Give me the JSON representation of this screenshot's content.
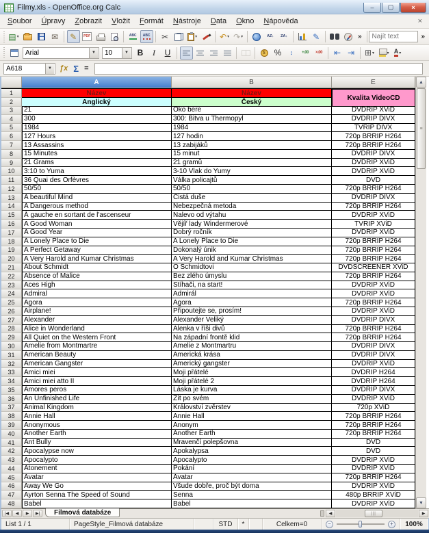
{
  "window": {
    "title": "Filmy.xls - OpenOffice.org Calc"
  },
  "titlebar": {
    "buttons": [
      {
        "name": "minimize-button",
        "glyph": "–"
      },
      {
        "name": "maximize-button",
        "glyph": "▢"
      },
      {
        "name": "close-button",
        "glyph": "×"
      }
    ]
  },
  "menu": {
    "items": [
      "Soubor",
      "Úpravy",
      "Zobrazit",
      "Vložit",
      "Formát",
      "Nástroje",
      "Data",
      "Okno",
      "Nápověda"
    ],
    "close_label": "×"
  },
  "standard_toolbar": {
    "overflow": "»",
    "items": [
      {
        "name": "new-document",
        "glyph": "▤",
        "color": "#2f7d31",
        "dd": true
      },
      {
        "name": "open",
        "cls": "i-folder"
      },
      {
        "name": "save",
        "cls": "i-floppy"
      },
      {
        "name": "email",
        "glyph": "✉",
        "color": "#6b6257"
      },
      "|",
      {
        "name": "edit-file",
        "glyph": "✎",
        "color": "#a8842c",
        "pressed": true
      },
      {
        "name": "export-pdf",
        "cls": "i-pdf",
        "glyph": "PDF"
      },
      {
        "name": "print",
        "cls": "i-printer"
      },
      {
        "name": "page-preview",
        "cls": "i-preview"
      },
      "|",
      {
        "name": "spellcheck",
        "cls": "i-abc i-abc-chk",
        "glyph": "ABC"
      },
      {
        "name": "autospellcheck",
        "cls": "i-abc i-abc-auto",
        "glyph": "ABC",
        "pressed": true
      },
      "|",
      {
        "name": "cut",
        "glyph": "✂",
        "color": "#444444"
      },
      {
        "name": "copy",
        "cls": "i-copy"
      },
      {
        "name": "paste",
        "cls": "i-clipboard",
        "dd": true
      },
      {
        "name": "format-paintbrush",
        "cls": "i-brush"
      },
      "|",
      {
        "name": "undo",
        "glyph": "↶",
        "color": "#c89020",
        "dd": true
      },
      {
        "name": "redo",
        "glyph": "↷",
        "color": "#b0aca4",
        "dd": true
      },
      "|",
      {
        "name": "hyperlink",
        "cls": "i-globe"
      },
      {
        "name": "sort-ascending",
        "cls": "i-sort",
        "glyph": "AZ↓"
      },
      {
        "name": "sort-descending",
        "cls": "i-sort",
        "glyph": "ZA↓"
      },
      "|",
      {
        "name": "chart",
        "cls": "i-chart"
      },
      {
        "name": "draw-functions",
        "glyph": "✎",
        "color": "#3a6fc0"
      },
      "|",
      {
        "name": "find-replace",
        "cls": "i-binoc"
      },
      {
        "name": "navigator",
        "cls": "i-compass"
      }
    ]
  },
  "find_toolbar": {
    "placeholder": "Najít text",
    "overflow": "»"
  },
  "formatting_toolbar": {
    "font_name": "Arial",
    "font_size": "10",
    "items": [
      {
        "name": "bold",
        "cls": "i-b",
        "glyph": "B"
      },
      {
        "name": "italic",
        "cls": "i-i",
        "glyph": "I"
      },
      {
        "name": "underline",
        "cls": "i-u",
        "glyph": "U"
      },
      "|",
      {
        "name": "align-left",
        "cls": "i-al i-al-l",
        "pressed": true
      },
      {
        "name": "align-center",
        "cls": "i-al i-al-c"
      },
      {
        "name": "align-right",
        "cls": "i-al i-al-r"
      },
      {
        "name": "align-justified",
        "cls": "i-al i-al-j"
      },
      "|",
      {
        "name": "merge-cells",
        "cls": "i-merge",
        "disabled": true
      },
      "|",
      {
        "name": "number-currency",
        "cls": "i-coin",
        "glyph": "$"
      },
      {
        "name": "number-percent",
        "glyph": "%",
        "color": "#333333"
      },
      {
        "name": "number-standard",
        "cls": "i-num",
        "glyph": "↕",
        "color": "#3a6fc0"
      },
      {
        "name": "add-decimal",
        "cls": "i-dec",
        "glyph": "+.00",
        "color": "#2e7d32"
      },
      {
        "name": "delete-decimal",
        "cls": "i-dec",
        "glyph": "×.00",
        "color": "#c0392b"
      },
      "|",
      {
        "name": "decrease-indent",
        "glyph": "⇤",
        "color": "#3a6fc0"
      },
      {
        "name": "increase-indent",
        "glyph": "⇥",
        "color": "#3a6fc0"
      },
      "|",
      {
        "name": "borders",
        "glyph": "⊞",
        "color": "#555555",
        "dd": true
      },
      {
        "name": "background-color",
        "cls": "i-bgcolor",
        "dd": true
      },
      {
        "name": "font-color",
        "cls": "i-fontcolor",
        "glyph": "A",
        "dd": true
      }
    ]
  },
  "formula_bar": {
    "cell_reference": "A618",
    "function_wizard": "ƒx",
    "sum": "Σ",
    "equals": "=",
    "input_value": ""
  },
  "sheet": {
    "column_headers": [
      "A",
      "B",
      "E"
    ],
    "selected_column": "A",
    "header": {
      "row_numbers": [
        "1",
        "2"
      ],
      "row1": {
        "a": "Název",
        "b": "Název"
      },
      "row2": {
        "a": "Anglický",
        "b": "Český"
      },
      "quality": "Kvalita VideoCD"
    },
    "rows": [
      {
        "n": "3",
        "en": "21",
        "cz": "Oko bere",
        "q": "DVDRIP XViD"
      },
      {
        "n": "4",
        "en": "300",
        "cz": "300: Bitva u Thermopyl",
        "q": "DVDRIP DIVX"
      },
      {
        "n": "5",
        "en": "1984",
        "cz": "1984",
        "q": "TVRIP DIVX"
      },
      {
        "n": "6",
        "en": "127 Hours",
        "cz": "127 hodin",
        "q": "720p BRRIP H264"
      },
      {
        "n": "7",
        "en": "13 Assassins",
        "cz": "13 zabijáků",
        "q": "720p BRRIP H264"
      },
      {
        "n": "8",
        "en": "15 Minutes",
        "cz": "15 minut",
        "q": "DVDRIP DIVX"
      },
      {
        "n": "9",
        "en": "21 Grams",
        "cz": "21 gramů",
        "q": "DVDRIP XViD"
      },
      {
        "n": "10",
        "en": "3:10 to Yuma",
        "cz": "3-10 Vlak do Yumy",
        "q": "DVDRIP XViD"
      },
      {
        "n": "11",
        "en": "36 Quai des Orfèvres",
        "cz": "Válka policajtů",
        "q": "DVD"
      },
      {
        "n": "12",
        "en": "50/50",
        "cz": "50/50",
        "q": "720p BRRIP H264"
      },
      {
        "n": "13",
        "en": "A beautiful Mind",
        "cz": "Čistá duše",
        "q": "DVDRIP DIVX"
      },
      {
        "n": "14",
        "en": "A Dangerous method",
        "cz": "Nebezpečná metoda",
        "q": "720p BRRIP H264"
      },
      {
        "n": "15",
        "en": "À gauche en sortant de l'ascenseur",
        "cz": "Nalevo od výtahu",
        "q": "DVDRIP XViD"
      },
      {
        "n": "16",
        "en": "A Good Woman",
        "cz": "Vějíř lady Windermerové",
        "q": "TVRIP XViD"
      },
      {
        "n": "17",
        "en": "A Good Year",
        "cz": "Dobrý ročník",
        "q": "DVDRIP XViD"
      },
      {
        "n": "18",
        "en": "A Lonely Place to Die",
        "cz": "A Lonely Place to Die",
        "q": "720p BRRIP H264"
      },
      {
        "n": "19",
        "en": "A Perfect Getaway",
        "cz": "Dokonalý únik",
        "q": "720p BRRIP H264"
      },
      {
        "n": "20",
        "en": "A Very Harold and Kumar Christmas",
        "cz": "A Very Harold and Kumar Christmas",
        "q": "720p BRRIP H264"
      },
      {
        "n": "21",
        "en": "About Schmidt",
        "cz": "O Schmidtovi",
        "q": "DVDSCREENER XViD"
      },
      {
        "n": "22",
        "en": "Absence of Malice",
        "cz": "Bez zlého úmyslu",
        "q": "720p BRRIP H264"
      },
      {
        "n": "23",
        "en": "Aces High",
        "cz": "Stíhači, na start!",
        "q": "DVDRIP XViD"
      },
      {
        "n": "24",
        "en": "Admiral",
        "cz": "Admirál",
        "q": "DVDRIP XViD"
      },
      {
        "n": "25",
        "en": "Agora",
        "cz": "Agora",
        "q": "720p BRRIP H264"
      },
      {
        "n": "26",
        "en": "Airplane!",
        "cz": "Připoutejte se, prosím!",
        "q": "DVDRIP XViD"
      },
      {
        "n": "27",
        "en": "Alexander",
        "cz": "Alexander Veliký",
        "q": "DVDRIP DIVX"
      },
      {
        "n": "28",
        "en": "Alice in Wonderland",
        "cz": "Alenka v říši divů",
        "q": "720p BRRIP H264"
      },
      {
        "n": "29",
        "en": "All Quiet on the Western Front",
        "cz": "Na západní frontě klid",
        "q": "720p BRRIP H264"
      },
      {
        "n": "30",
        "en": "Amelie from Montmartre",
        "cz": "Amelie z Montmartru",
        "q": "DVDRIP DIVX"
      },
      {
        "n": "31",
        "en": "American Beauty",
        "cz": "Americká krása",
        "q": "DVDRIP DIVX"
      },
      {
        "n": "32",
        "en": "American Gangster",
        "cz": "Americký gangster",
        "q": "DVDRIP XViD"
      },
      {
        "n": "33",
        "en": "Amici miei",
        "cz": "Moji přátelé",
        "q": "DVDRIP H264"
      },
      {
        "n": "34",
        "en": "Amici miei atto II",
        "cz": "Moji přátelé 2",
        "q": "DVDRIP H264"
      },
      {
        "n": "35",
        "en": "Amores peros",
        "cz": "Láska je kurva",
        "q": "DVDRIP DIVX"
      },
      {
        "n": "36",
        "en": "An Unfinished Life",
        "cz": "Žít po svém",
        "q": "DVDRIP XViD"
      },
      {
        "n": "37",
        "en": "Animal Kingdom",
        "cz": "Království zvěrstev",
        "q": "720p XViD"
      },
      {
        "n": "38",
        "en": "Annie Hall",
        "cz": "Annie Hall",
        "q": "720p BRRIP H264"
      },
      {
        "n": "39",
        "en": "Anonymous",
        "cz": "Anonym",
        "q": "720p BRRIP H264"
      },
      {
        "n": "40",
        "en": "Another Earth",
        "cz": "Another Earth",
        "q": "720p BRRIP H264"
      },
      {
        "n": "41",
        "en": "Ant Bully",
        "cz": "Mravenčí polepšovna",
        "q": "DVD"
      },
      {
        "n": "42",
        "en": "Apocalypse now",
        "cz": "Apokalypsa",
        "q": "DVD"
      },
      {
        "n": "43",
        "en": "Apocalypto",
        "cz": "Apocalypto",
        "q": "DVDRIP XViD"
      },
      {
        "n": "44",
        "en": "Atonement",
        "cz": "Pokání",
        "q": "DVDRIP XViD"
      },
      {
        "n": "45",
        "en": "Avatar",
        "cz": "Avatar",
        "q": "720p BRRIP H264"
      },
      {
        "n": "46",
        "en": "Away We Go",
        "cz": "Všude dobře, proč být doma",
        "q": "DVDRIP XViD"
      },
      {
        "n": "47",
        "en": "Ayrton Senna The Speed of Sound",
        "cz": "Senna",
        "q": "480p BRRIP XViD"
      },
      {
        "n": "48",
        "en": "Babel",
        "cz": "Babel",
        "q": "DVDRIP XViD"
      }
    ]
  },
  "tab_bar": {
    "nav_buttons": [
      {
        "name": "first-sheet-button",
        "glyph": "|◀"
      },
      {
        "name": "prev-sheet-button",
        "glyph": "◀"
      },
      {
        "name": "next-sheet-button",
        "glyph": "▶"
      },
      {
        "name": "last-sheet-button",
        "glyph": "▶|"
      }
    ],
    "tab": "Filmová databáze",
    "hscroll_left": "◀",
    "hscroll_right": "▶"
  },
  "status_bar": {
    "sheet": "List 1 / 1",
    "page_style": "PageStyle_Filmová databáze",
    "mode": "STD",
    "modified": "*",
    "sum": "Celkem=0",
    "zoom_out": "⊖",
    "zoom_in": "⊕",
    "zoom": "100%"
  },
  "colors": {
    "header_red_bg": "#ff0000",
    "header_red_text": "#7f1510",
    "header_cyan_bg": "#ccffff",
    "header_green_bg": "#ccffcc",
    "header_pink_bg": "#ff99cc",
    "selected_column_blue": "#447fcd",
    "titlebar_blue": "#c3d6ea"
  }
}
